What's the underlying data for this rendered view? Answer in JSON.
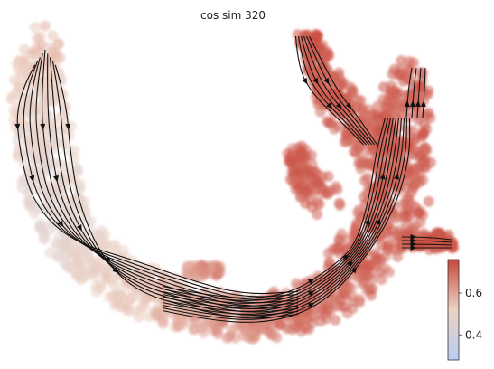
{
  "chart_data": {
    "type": "scatter",
    "title": "cos sim 320",
    "xlabel": "",
    "ylabel": "",
    "grid": false,
    "axes_visible": false,
    "overlay": "velocity streamlines with arrowheads",
    "colormap": {
      "name": "coolwarm",
      "low_color": "#c9d7f3",
      "mid_color": "#ecd3c5",
      "high_color": "#c8473b",
      "range": [
        0.28,
        0.76
      ],
      "ticks": [
        {
          "value": 0.4,
          "label": "0.4"
        },
        {
          "value": 0.6,
          "label": "0.6"
        }
      ],
      "placement": "bottom-right"
    }
  }
}
